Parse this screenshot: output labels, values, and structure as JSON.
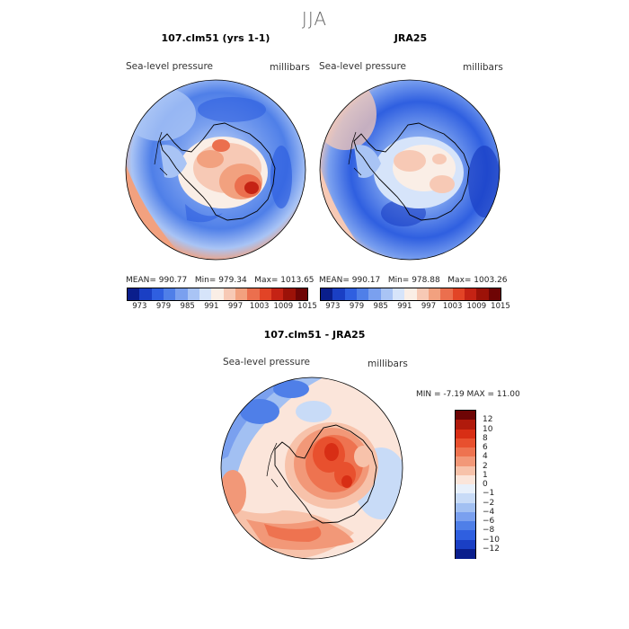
{
  "figure": {
    "season": "JJA"
  },
  "panels": [
    {
      "title": "107.clm51 (yrs 1-1)",
      "variable": "Sea-level pressure",
      "units": "millibars",
      "mean": "MEAN= 990.77",
      "min": "Min= 979.34",
      "max": "Max= 1013.65"
    },
    {
      "title": "JRA25",
      "variable": "Sea-level pressure",
      "units": "millibars",
      "mean": "MEAN= 990.17",
      "min": "Min= 978.88",
      "max": "Max= 1003.26"
    }
  ],
  "top_colorbar": {
    "colors": [
      "#0a1e8c",
      "#1a3fc4",
      "#2f5fe0",
      "#4f7fe8",
      "#7aa0ef",
      "#a9c4f5",
      "#d6e4fa",
      "#faeee6",
      "#f7c9b5",
      "#f2a17f",
      "#eb6f4e",
      "#e24426",
      "#c52314",
      "#9c1208",
      "#6e0505"
    ],
    "tick_labels": [
      "973",
      "979",
      "985",
      "991",
      "997",
      "1003",
      "1009",
      "1015"
    ]
  },
  "diff_panel": {
    "title": "107.clm51 - JRA25",
    "variable": "Sea-level pressure",
    "units": "millibars",
    "stats": "MIN =   -7.19 MAX =   11.00",
    "colorbar": {
      "colors": [
        "#6e0505",
        "#b01a0c",
        "#d82e15",
        "#e8502e",
        "#ee7350",
        "#f29878",
        "#f7c2aa",
        "#fbe5da",
        "#e8f0fb",
        "#c8dbf7",
        "#a2c0f2",
        "#7aa0ef",
        "#4f7fe8",
        "#2f5fe0",
        "#1a3fc4",
        "#0a1e8c"
      ],
      "labels": [
        "12",
        "10",
        "8",
        "6",
        "4",
        "2",
        "1",
        "0",
        "−1",
        "−2",
        "−4",
        "−6",
        "−8",
        "−10",
        "−12"
      ]
    }
  }
}
